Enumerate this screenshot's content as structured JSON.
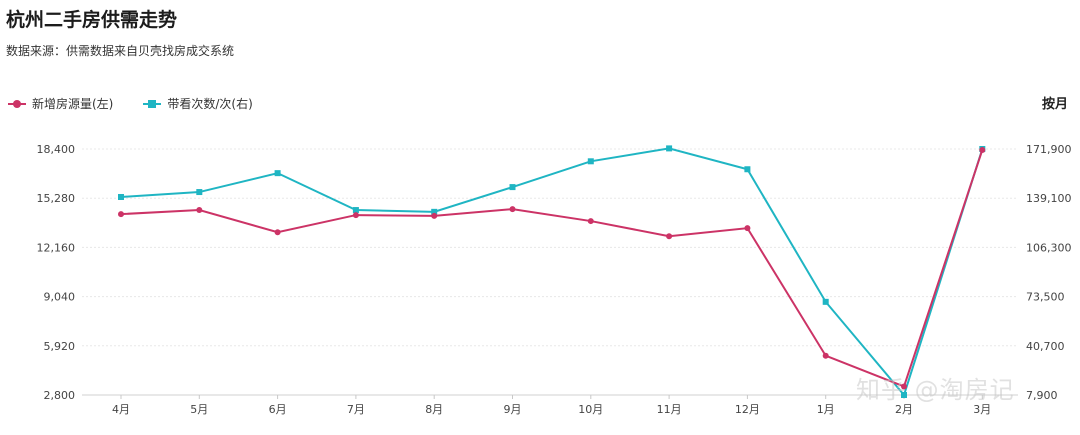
{
  "title": "杭州二手房供需走势",
  "subtitle": "数据来源：供需数据来自贝壳找房成交系统",
  "period_label": "按月",
  "watermark": "知乎 @淘房记",
  "colors": {
    "supply": "#cc3366",
    "viewings": "#1fb5c3",
    "grid": "#e8e8e8"
  },
  "chart_data": {
    "type": "line",
    "title": "杭州二手房供需走势",
    "subtitle": "数据来源：供需数据来自贝壳找房成交系统",
    "categories": [
      "4月",
      "5月",
      "6月",
      "7月",
      "8月",
      "9月",
      "10月",
      "11月",
      "12月",
      "1月",
      "2月",
      "3月"
    ],
    "y_left": {
      "ticks": [
        "2,800",
        "5,920",
        "9,040",
        "12,160",
        "15,280",
        "18,400"
      ],
      "range": [
        2800,
        18400
      ]
    },
    "y_right": {
      "ticks": [
        "7,900",
        "40,700",
        "73,500",
        "106,300",
        "139,100",
        "171,900"
      ],
      "range": [
        7900,
        171900
      ]
    },
    "series": [
      {
        "name": "新增房源量(左)",
        "axis": "left",
        "marker": "circle",
        "values": [
          14270,
          14530,
          13120,
          14210,
          14160,
          14590,
          13830,
          12870,
          13380,
          5290,
          3340,
          18340
        ]
      },
      {
        "name": "带看次数/次(右)",
        "axis": "right",
        "marker": "square",
        "values": [
          139900,
          143200,
          155800,
          131200,
          130000,
          146500,
          163700,
          172300,
          158400,
          70000,
          7900,
          171900
        ]
      }
    ],
    "legend_position": "top-left",
    "grid": true
  }
}
